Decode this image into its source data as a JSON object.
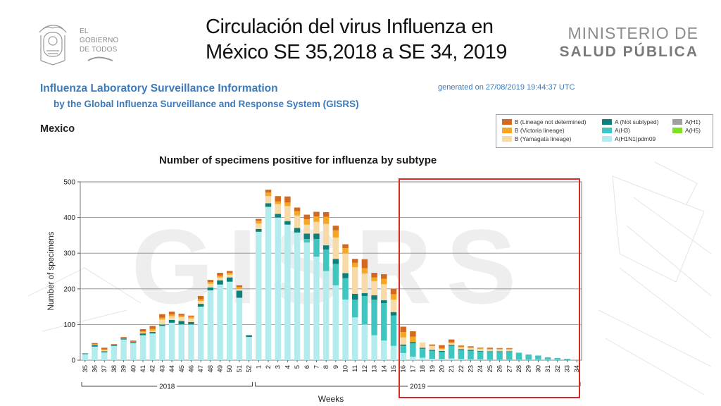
{
  "slide": {
    "title_line1": "Circulación del virus Influenza en",
    "title_line2": "México SE 35,2018 a SE 34, 2019",
    "logo_line1": "EL",
    "logo_line2": "GOBIERNO",
    "logo_line3": "DE TODOS",
    "ministerio_line1": "MINISTERIO DE",
    "ministerio_line2": "SALUD PÚBLICA"
  },
  "report": {
    "title": "Influenza Laboratory Surveillance Information",
    "subtitle": "by the Global Influenza Surveillance and Response System (GISRS)",
    "generated": "generated on 27/08/2019 19:44:37 UTC",
    "country": "Mexico",
    "watermark": "GISRS"
  },
  "legend": {
    "items": [
      {
        "label": "B (Lineage not determined)",
        "color": "#d2691e"
      },
      {
        "label": "B (Victoria lineage)",
        "color": "#f5a623"
      },
      {
        "label": "B (Yamagata lineage)",
        "color": "#f8d9a8"
      },
      {
        "label": "A (Not subtyped)",
        "color": "#0f7f7a"
      },
      {
        "label": "A(H3)",
        "color": "#3fc6c0"
      },
      {
        "label": "A(H1N1)pdm09",
        "color": "#b3ecef"
      },
      {
        "label": "A(H1)",
        "color": "#a0a0a0"
      },
      {
        "label": "A(H5)",
        "color": "#7ee021"
      }
    ]
  },
  "chart_data": {
    "type": "bar",
    "stacked": true,
    "title": "Number of specimens positive for influenza by subtype",
    "xlabel": "Weeks",
    "ylabel": "Number of specimens",
    "ylim": [
      0,
      500
    ],
    "yticks": [
      0,
      100,
      200,
      300,
      400,
      500
    ],
    "grid": true,
    "legend_position": "top-right",
    "categories": [
      "35",
      "36",
      "37",
      "38",
      "39",
      "40",
      "41",
      "42",
      "43",
      "44",
      "45",
      "46",
      "47",
      "48",
      "49",
      "50",
      "51",
      "52",
      "1",
      "2",
      "3",
      "4",
      "5",
      "6",
      "7",
      "8",
      "9",
      "10",
      "11",
      "12",
      "13",
      "14",
      "15",
      "16",
      "17",
      "18",
      "19",
      "20",
      "21",
      "22",
      "23",
      "24",
      "25",
      "26",
      "27",
      "28",
      "29",
      "30",
      "31",
      "32",
      "33",
      "34"
    ],
    "year_groups": [
      {
        "label": "2018",
        "from": "35",
        "to": "52"
      },
      {
        "label": "2019",
        "from": "1",
        "to": "34"
      }
    ],
    "series": [
      {
        "name": "A(H1N1)pdm09",
        "color": "#b3ecef",
        "values": [
          17,
          38,
          22,
          40,
          58,
          48,
          70,
          75,
          96,
          105,
          100,
          100,
          150,
          196,
          212,
          220,
          175,
          65,
          360,
          430,
          400,
          380,
          358,
          330,
          290,
          250,
          210,
          170,
          120,
          100,
          70,
          55,
          40,
          20,
          10,
          7,
          4,
          3,
          5,
          3,
          2,
          2,
          1,
          1,
          1,
          1,
          1,
          1,
          1,
          1,
          0,
          0
        ]
      },
      {
        "name": "A(H3)",
        "color": "#3fc6c0",
        "values": [
          0,
          0,
          0,
          0,
          0,
          0,
          0,
          0,
          0,
          0,
          0,
          0,
          0,
          0,
          0,
          0,
          0,
          0,
          0,
          0,
          0,
          0,
          0,
          10,
          50,
          60,
          60,
          60,
          50,
          80,
          100,
          105,
          85,
          20,
          37,
          25,
          22,
          20,
          35,
          25,
          24,
          22,
          22,
          22,
          22,
          20,
          15,
          12,
          7,
          5,
          4,
          0
        ]
      },
      {
        "name": "A (Not subtyped)",
        "color": "#0f7f7a",
        "values": [
          2,
          4,
          3,
          3,
          3,
          3,
          5,
          4,
          4,
          8,
          10,
          7,
          8,
          8,
          12,
          12,
          20,
          5,
          8,
          10,
          10,
          10,
          13,
          15,
          15,
          12,
          14,
          14,
          16,
          8,
          12,
          8,
          10,
          4,
          4,
          3,
          3,
          3,
          3,
          3,
          3,
          2,
          2,
          2,
          2,
          0,
          0,
          0,
          0,
          0,
          0,
          0
        ]
      },
      {
        "name": "B (Yamagata lineage)",
        "color": "#f8d9a8",
        "values": [
          0,
          0,
          3,
          0,
          0,
          0,
          3,
          4,
          14,
          10,
          10,
          10,
          8,
          10,
          8,
          8,
          5,
          0,
          15,
          20,
          28,
          42,
          35,
          25,
          33,
          60,
          60,
          55,
          75,
          55,
          40,
          45,
          35,
          20,
          0,
          15,
          10,
          5,
          5,
          5,
          5,
          5,
          5,
          5,
          5,
          0,
          0,
          0,
          0,
          0,
          0,
          0
        ]
      },
      {
        "name": "B (Victoria lineage)",
        "color": "#f5a623",
        "values": [
          0,
          3,
          2,
          0,
          2,
          1,
          3,
          5,
          5,
          5,
          5,
          5,
          5,
          5,
          5,
          5,
          5,
          0,
          8,
          10,
          7,
          10,
          12,
          15,
          15,
          20,
          20,
          15,
          12,
          15,
          10,
          15,
          15,
          15,
          15,
          0,
          2,
          3,
          2,
          2,
          2,
          2,
          2,
          2,
          2,
          0,
          0,
          0,
          0,
          0,
          0,
          0
        ]
      },
      {
        "name": "B (Lineage not determined)",
        "color": "#d2691e",
        "values": [
          0,
          3,
          5,
          2,
          2,
          3,
          6,
          8,
          10,
          8,
          5,
          3,
          9,
          6,
          8,
          5,
          5,
          0,
          5,
          8,
          15,
          17,
          10,
          13,
          13,
          13,
          13,
          11,
          11,
          25,
          13,
          13,
          15,
          15,
          15,
          0,
          3,
          8,
          8,
          3,
          3,
          2,
          3,
          2,
          2,
          0,
          0,
          0,
          0,
          0,
          0,
          0
        ]
      },
      {
        "name": "A(H1)",
        "color": "#a0a0a0",
        "values": [
          0,
          0,
          0,
          0,
          0,
          0,
          0,
          0,
          0,
          0,
          0,
          0,
          0,
          0,
          0,
          0,
          0,
          0,
          0,
          0,
          0,
          0,
          0,
          0,
          0,
          0,
          0,
          0,
          0,
          0,
          0,
          0,
          0,
          0,
          0,
          0,
          0,
          0,
          0,
          0,
          0,
          0,
          0,
          0,
          0,
          0,
          0,
          0,
          0,
          0,
          0,
          0
        ]
      },
      {
        "name": "A(H5)",
        "color": "#7ee021",
        "values": [
          0,
          0,
          0,
          0,
          0,
          0,
          0,
          0,
          0,
          0,
          0,
          0,
          0,
          0,
          0,
          0,
          0,
          0,
          0,
          0,
          0,
          0,
          0,
          0,
          0,
          0,
          0,
          0,
          0,
          0,
          0,
          0,
          0,
          0,
          0,
          0,
          0,
          0,
          0,
          0,
          0,
          0,
          0,
          0,
          0,
          0,
          0,
          0,
          0,
          0,
          0,
          0
        ]
      }
    ]
  }
}
